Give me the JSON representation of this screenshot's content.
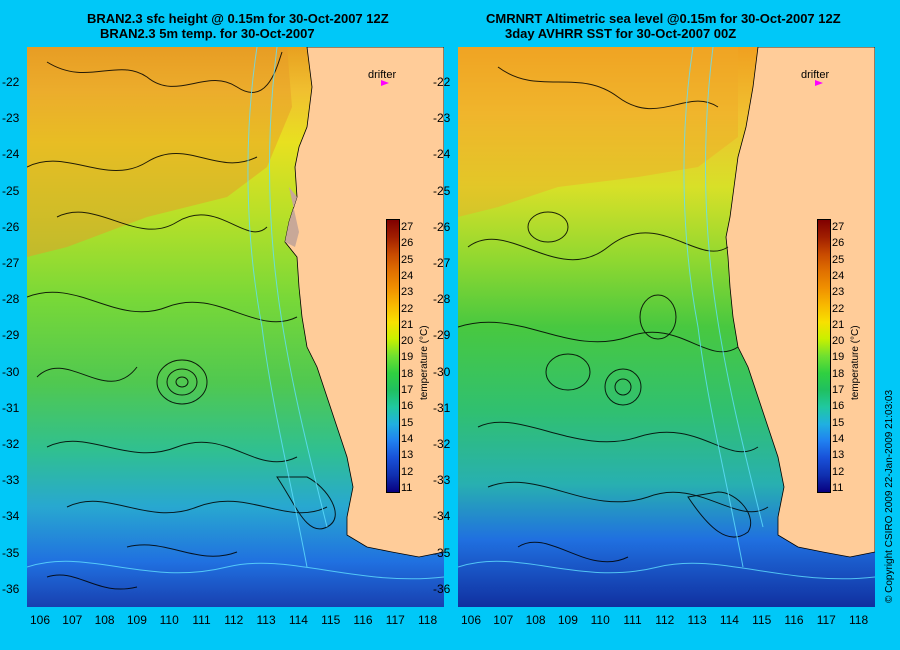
{
  "panels": [
    {
      "title_line1": "BRAN2.3 sfc height @ 0.15m for 30-Oct-2007 12Z",
      "title_line2": "BRAN2.3 5m temp. for 30-Oct-2007",
      "drifter_label": "drifter"
    },
    {
      "title_line1": "CMRNRT Altimetric sea level  @0.15m  for 30-Oct-2007 12Z",
      "title_line2": "3day AVHRR SST for 30-Oct-2007 00Z",
      "drifter_label": "drifter"
    }
  ],
  "axes": {
    "lat_ticks": [
      "-22",
      "-23",
      "-24",
      "-25",
      "-26",
      "-27",
      "-28",
      "-29",
      "-30",
      "-31",
      "-32",
      "-33",
      "-34",
      "-35",
      "-36"
    ],
    "lon_ticks": [
      "106",
      "107",
      "108",
      "109",
      "110",
      "111",
      "112",
      "113",
      "114",
      "115",
      "116",
      "117",
      "118"
    ]
  },
  "colorbar": {
    "title": "temperature (°C)",
    "labels": [
      "27",
      "26",
      "25",
      "24",
      "23",
      "22",
      "21",
      "20",
      "19",
      "18",
      "17",
      "16",
      "15",
      "14",
      "13",
      "12",
      "11"
    ],
    "colors": [
      "#800000",
      "#a01e00",
      "#c84a00",
      "#e07000",
      "#f09000",
      "#f8b800",
      "#f8e000",
      "#c8f000",
      "#70e030",
      "#30d040",
      "#20c060",
      "#20c8a0",
      "#20b0e0",
      "#2080f0",
      "#1850d8",
      "#1030b0",
      "#080080"
    ]
  },
  "copyright": "© Copyright CSIRO 2009   22-Jan-2009 21:03:03"
}
